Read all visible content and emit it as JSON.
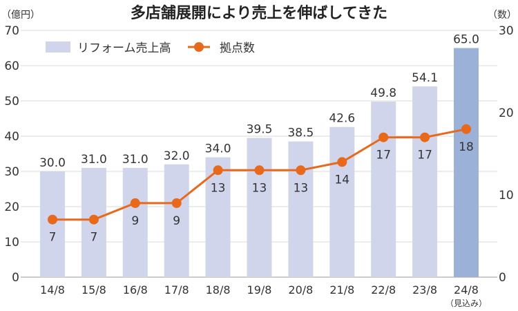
{
  "chart_data": {
    "type": "bar+line",
    "title": "多店舗展開により売上を伸ばしてきた",
    "left_axis_unit": "（億円）",
    "right_axis_unit": "（数）",
    "categories": [
      "14/8",
      "15/8",
      "16/8",
      "17/8",
      "18/8",
      "19/8",
      "20/8",
      "21/8",
      "22/8",
      "23/8",
      "24/8"
    ],
    "category_notes": {
      "24/8": "（見込み）"
    },
    "left_ylim": [
      0,
      70
    ],
    "left_ticks": [
      0,
      10,
      20,
      30,
      40,
      50,
      60,
      70
    ],
    "right_ylim": [
      0,
      30
    ],
    "right_ticks": [
      0,
      10,
      20,
      30
    ],
    "grid": true,
    "legend_placement": "top-left",
    "series": [
      {
        "name": "リフォーム売上高",
        "type": "bar",
        "axis": "left",
        "values": [
          30.0,
          31.0,
          31.0,
          32.0,
          34.0,
          39.5,
          38.5,
          42.6,
          49.8,
          54.1,
          65.0
        ],
        "labels": [
          "30.0",
          "31.0",
          "31.0",
          "32.0",
          "34.0",
          "39.5",
          "38.5",
          "42.6",
          "49.8",
          "54.1",
          "65.0"
        ],
        "color": "#d1d5eb",
        "highlight_color": "#9bb1d7",
        "highlight_index": 10
      },
      {
        "name": "拠点数",
        "type": "line",
        "axis": "right",
        "values": [
          7,
          7,
          9,
          9,
          13,
          13,
          13,
          14,
          17,
          17,
          18
        ],
        "color": "#e8681c"
      }
    ]
  }
}
